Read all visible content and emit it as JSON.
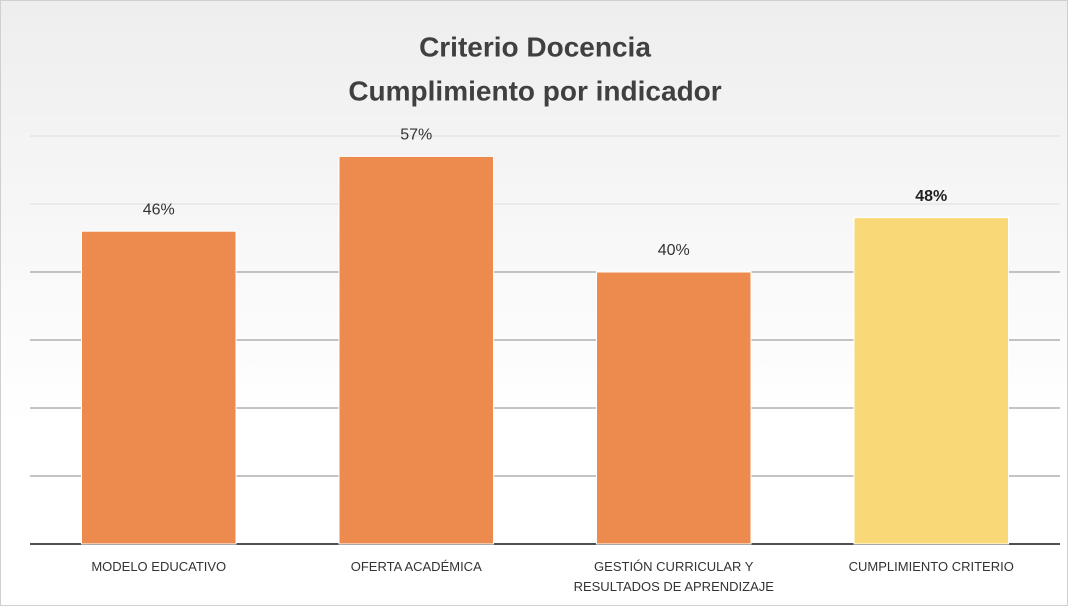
{
  "chart_data": {
    "type": "bar",
    "title": [
      "Criterio Docencia",
      "Cumplimiento por indicador"
    ],
    "categories": [
      "MODELO EDUCATIVO",
      "OFERTA ACADÉMICA",
      "GESTIÓN CURRICULAR Y RESULTADOS DE APRENDIZAJE",
      "CUMPLIMIENTO CRITERIO"
    ],
    "values": [
      46,
      57,
      40,
      48
    ],
    "value_labels": [
      "46%",
      "57%",
      "40%",
      "48%"
    ],
    "colors": [
      "#ed8b4e",
      "#ed8b4e",
      "#ed8b4e",
      "#f9d977"
    ],
    "ylim": [
      0,
      60
    ],
    "yticks": [
      0,
      10,
      20,
      30,
      40,
      50,
      60
    ],
    "grid": true
  }
}
